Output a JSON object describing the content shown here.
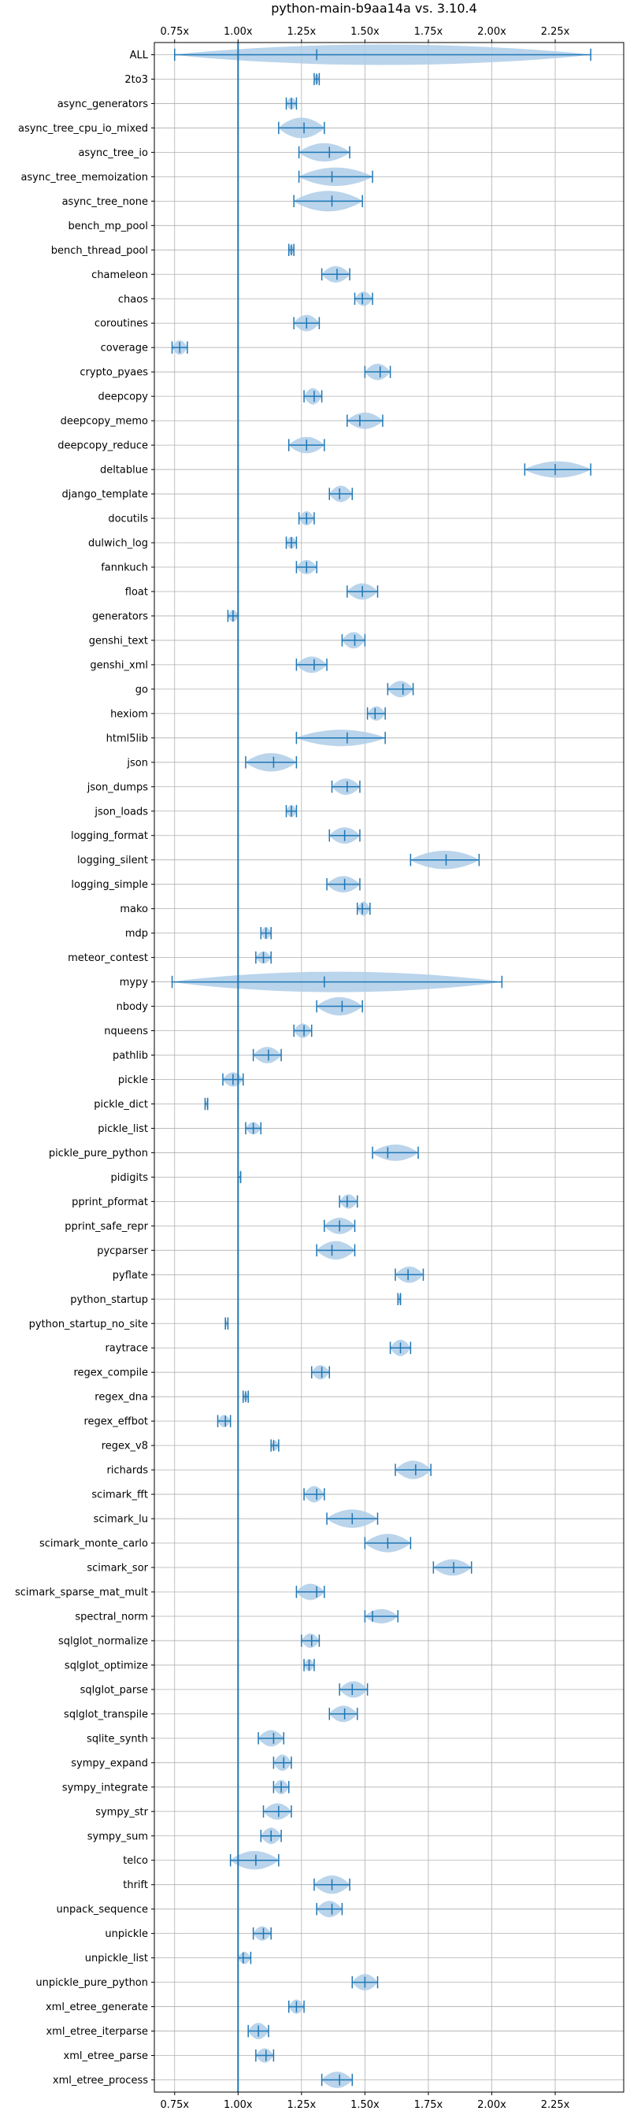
{
  "chart_data": {
    "type": "violin",
    "orientation": "horizontal",
    "title": "python-main-b9aa14a vs. 3.10.4",
    "xlabel": "",
    "ylabel": "",
    "xlim": [
      0.67,
      2.52
    ],
    "x_ticks": [
      0.75,
      1.0,
      1.25,
      1.5,
      1.75,
      2.0,
      2.25
    ],
    "x_tick_labels": [
      "0.75x",
      "1.00x",
      "1.25x",
      "1.50x",
      "1.75x",
      "2.00x",
      "2.25x"
    ],
    "reference_line": 1.0,
    "grid": true,
    "colors": {
      "violin_fill": "#aecde8",
      "whisker": "#1f77b4",
      "grid": "#b0b0b0",
      "axis": "#000000"
    },
    "benchmarks": [
      {
        "name": "ALL",
        "min": 0.75,
        "median": 1.31,
        "mean": 1.31,
        "max": 2.39,
        "width": 1.0
      },
      {
        "name": "2to3",
        "min": 1.3,
        "median": 1.31,
        "mean": 1.31,
        "max": 1.32,
        "width": 0.5
      },
      {
        "name": "async_generators",
        "min": 1.19,
        "median": 1.21,
        "mean": 1.21,
        "max": 1.23,
        "width": 0.6
      },
      {
        "name": "async_tree_cpu_io_mixed",
        "min": 1.16,
        "median": 1.26,
        "mean": 1.26,
        "max": 1.34,
        "width": 1.0
      },
      {
        "name": "async_tree_io",
        "min": 1.24,
        "median": 1.36,
        "mean": 1.36,
        "max": 1.44,
        "width": 0.9
      },
      {
        "name": "async_tree_memoization",
        "min": 1.24,
        "median": 1.37,
        "mean": 1.37,
        "max": 1.53,
        "width": 0.9
      },
      {
        "name": "async_tree_none",
        "min": 1.22,
        "median": 1.37,
        "mean": 1.37,
        "max": 1.49,
        "width": 1.0
      },
      {
        "name": "bench_mp_pool",
        "min": null,
        "median": null,
        "mean": null,
        "max": null,
        "width": 0
      },
      {
        "name": "bench_thread_pool",
        "min": 1.2,
        "median": 1.21,
        "mean": 1.21,
        "max": 1.22,
        "width": 0.5
      },
      {
        "name": "chameleon",
        "min": 1.33,
        "median": 1.39,
        "mean": 1.39,
        "max": 1.44,
        "width": 0.8
      },
      {
        "name": "chaos",
        "min": 1.46,
        "median": 1.49,
        "mean": 1.49,
        "max": 1.53,
        "width": 0.7
      },
      {
        "name": "coroutines",
        "min": 1.22,
        "median": 1.27,
        "mean": 1.27,
        "max": 1.32,
        "width": 0.8
      },
      {
        "name": "coverage",
        "min": 0.74,
        "median": 0.77,
        "mean": 0.77,
        "max": 0.8,
        "width": 0.7
      },
      {
        "name": "crypto_pyaes",
        "min": 1.5,
        "median": 1.56,
        "mean": 1.56,
        "max": 1.6,
        "width": 0.8
      },
      {
        "name": "deepcopy",
        "min": 1.26,
        "median": 1.3,
        "mean": 1.3,
        "max": 1.33,
        "width": 0.8
      },
      {
        "name": "deepcopy_memo",
        "min": 1.43,
        "median": 1.48,
        "mean": 1.48,
        "max": 1.57,
        "width": 0.8
      },
      {
        "name": "deepcopy_reduce",
        "min": 1.2,
        "median": 1.27,
        "mean": 1.27,
        "max": 1.34,
        "width": 0.8
      },
      {
        "name": "deltablue",
        "min": 2.13,
        "median": 2.25,
        "mean": 2.25,
        "max": 2.39,
        "width": 0.8
      },
      {
        "name": "django_template",
        "min": 1.36,
        "median": 1.4,
        "mean": 1.4,
        "max": 1.45,
        "width": 0.8
      },
      {
        "name": "docutils",
        "min": 1.24,
        "median": 1.27,
        "mean": 1.27,
        "max": 1.3,
        "width": 0.7
      },
      {
        "name": "dulwich_log",
        "min": 1.19,
        "median": 1.21,
        "mean": 1.21,
        "max": 1.23,
        "width": 0.6
      },
      {
        "name": "fannkuch",
        "min": 1.23,
        "median": 1.27,
        "mean": 1.27,
        "max": 1.31,
        "width": 0.7
      },
      {
        "name": "float",
        "min": 1.43,
        "median": 1.49,
        "mean": 1.49,
        "max": 1.55,
        "width": 0.8
      },
      {
        "name": "generators",
        "min": 0.96,
        "median": 0.98,
        "mean": 0.98,
        "max": 1.0,
        "width": 0.6
      },
      {
        "name": "genshi_text",
        "min": 1.41,
        "median": 1.46,
        "mean": 1.46,
        "max": 1.5,
        "width": 0.8
      },
      {
        "name": "genshi_xml",
        "min": 1.23,
        "median": 1.3,
        "mean": 1.3,
        "max": 1.35,
        "width": 0.8
      },
      {
        "name": "go",
        "min": 1.59,
        "median": 1.65,
        "mean": 1.65,
        "max": 1.69,
        "width": 0.8
      },
      {
        "name": "hexiom",
        "min": 1.51,
        "median": 1.54,
        "mean": 1.54,
        "max": 1.58,
        "width": 0.7
      },
      {
        "name": "html5lib",
        "min": 1.23,
        "median": 1.43,
        "mean": 1.43,
        "max": 1.58,
        "width": 0.8
      },
      {
        "name": "json",
        "min": 1.03,
        "median": 1.14,
        "mean": 1.14,
        "max": 1.23,
        "width": 0.9
      },
      {
        "name": "json_dumps",
        "min": 1.37,
        "median": 1.43,
        "mean": 1.43,
        "max": 1.48,
        "width": 0.8
      },
      {
        "name": "json_loads",
        "min": 1.19,
        "median": 1.21,
        "mean": 1.21,
        "max": 1.23,
        "width": 0.6
      },
      {
        "name": "logging_format",
        "min": 1.36,
        "median": 1.42,
        "mean": 1.42,
        "max": 1.48,
        "width": 0.8
      },
      {
        "name": "logging_silent",
        "min": 1.68,
        "median": 1.82,
        "mean": 1.82,
        "max": 1.95,
        "width": 0.9
      },
      {
        "name": "logging_simple",
        "min": 1.35,
        "median": 1.42,
        "mean": 1.42,
        "max": 1.48,
        "width": 0.8
      },
      {
        "name": "mako",
        "min": 1.47,
        "median": 1.49,
        "mean": 1.49,
        "max": 1.52,
        "width": 0.7
      },
      {
        "name": "mdp",
        "min": 1.09,
        "median": 1.11,
        "mean": 1.11,
        "max": 1.13,
        "width": 0.6
      },
      {
        "name": "meteor_contest",
        "min": 1.07,
        "median": 1.1,
        "mean": 1.1,
        "max": 1.13,
        "width": 0.6
      },
      {
        "name": "mypy",
        "min": 0.74,
        "median": 1.34,
        "mean": 1.34,
        "max": 2.04,
        "width": 1.0
      },
      {
        "name": "nbody",
        "min": 1.31,
        "median": 1.41,
        "mean": 1.41,
        "max": 1.49,
        "width": 0.9
      },
      {
        "name": "nqueens",
        "min": 1.22,
        "median": 1.26,
        "mean": 1.26,
        "max": 1.29,
        "width": 0.7
      },
      {
        "name": "pathlib",
        "min": 1.06,
        "median": 1.12,
        "mean": 1.12,
        "max": 1.17,
        "width": 0.8
      },
      {
        "name": "pickle",
        "min": 0.94,
        "median": 0.98,
        "mean": 0.98,
        "max": 1.02,
        "width": 0.7
      },
      {
        "name": "pickle_dict",
        "min": 0.87,
        "median": 0.88,
        "mean": 0.88,
        "max": 0.88,
        "width": 0.3
      },
      {
        "name": "pickle_list",
        "min": 1.03,
        "median": 1.06,
        "mean": 1.06,
        "max": 1.09,
        "width": 0.6
      },
      {
        "name": "pickle_pure_python",
        "min": 1.53,
        "median": 1.59,
        "mean": 1.59,
        "max": 1.71,
        "width": 0.8
      },
      {
        "name": "pidigits",
        "min": 1.0,
        "median": 1.01,
        "mean": 1.01,
        "max": 1.01,
        "width": 0.1
      },
      {
        "name": "pprint_pformat",
        "min": 1.4,
        "median": 1.43,
        "mean": 1.43,
        "max": 1.47,
        "width": 0.7
      },
      {
        "name": "pprint_safe_repr",
        "min": 1.34,
        "median": 1.4,
        "mean": 1.4,
        "max": 1.46,
        "width": 0.8
      },
      {
        "name": "pycparser",
        "min": 1.31,
        "median": 1.37,
        "mean": 1.37,
        "max": 1.46,
        "width": 0.9
      },
      {
        "name": "pyflate",
        "min": 1.62,
        "median": 1.67,
        "mean": 1.67,
        "max": 1.73,
        "width": 0.8
      },
      {
        "name": "python_startup",
        "min": 1.63,
        "median": 1.64,
        "mean": 1.64,
        "max": 1.64,
        "width": 0.4
      },
      {
        "name": "python_startup_no_site",
        "min": 0.95,
        "median": 0.95,
        "mean": 0.95,
        "max": 0.96,
        "width": 0.3
      },
      {
        "name": "raytrace",
        "min": 1.6,
        "median": 1.64,
        "mean": 1.64,
        "max": 1.68,
        "width": 0.8
      },
      {
        "name": "regex_compile",
        "min": 1.29,
        "median": 1.33,
        "mean": 1.33,
        "max": 1.36,
        "width": 0.7
      },
      {
        "name": "regex_dna",
        "min": 1.02,
        "median": 1.03,
        "mean": 1.03,
        "max": 1.04,
        "width": 0.4
      },
      {
        "name": "regex_effbot",
        "min": 0.92,
        "median": 0.95,
        "mean": 0.95,
        "max": 0.97,
        "width": 0.6
      },
      {
        "name": "regex_v8",
        "min": 1.13,
        "median": 1.14,
        "mean": 1.14,
        "max": 1.16,
        "width": 0.5
      },
      {
        "name": "richards",
        "min": 1.62,
        "median": 1.7,
        "mean": 1.7,
        "max": 1.76,
        "width": 0.9
      },
      {
        "name": "scimark_fft",
        "min": 1.26,
        "median": 1.31,
        "mean": 1.31,
        "max": 1.34,
        "width": 0.8
      },
      {
        "name": "scimark_lu",
        "min": 1.35,
        "median": 1.45,
        "mean": 1.45,
        "max": 1.55,
        "width": 0.9
      },
      {
        "name": "scimark_monte_carlo",
        "min": 1.5,
        "median": 1.59,
        "mean": 1.59,
        "max": 1.68,
        "width": 0.9
      },
      {
        "name": "scimark_sor",
        "min": 1.77,
        "median": 1.85,
        "mean": 1.85,
        "max": 1.92,
        "width": 0.8
      },
      {
        "name": "scimark_sparse_mat_mult",
        "min": 1.23,
        "median": 1.31,
        "mean": 1.31,
        "max": 1.34,
        "width": 0.8
      },
      {
        "name": "spectral_norm",
        "min": 1.5,
        "median": 1.53,
        "mean": 1.53,
        "max": 1.63,
        "width": 0.7
      },
      {
        "name": "sqlglot_normalize",
        "min": 1.25,
        "median": 1.29,
        "mean": 1.29,
        "max": 1.32,
        "width": 0.7
      },
      {
        "name": "sqlglot_optimize",
        "min": 1.26,
        "median": 1.28,
        "mean": 1.28,
        "max": 1.3,
        "width": 0.6
      },
      {
        "name": "sqlglot_parse",
        "min": 1.4,
        "median": 1.45,
        "mean": 1.45,
        "max": 1.51,
        "width": 0.8
      },
      {
        "name": "sqlglot_transpile",
        "min": 1.36,
        "median": 1.42,
        "mean": 1.42,
        "max": 1.47,
        "width": 0.8
      },
      {
        "name": "sqlite_synth",
        "min": 1.08,
        "median": 1.14,
        "mean": 1.14,
        "max": 1.18,
        "width": 0.8
      },
      {
        "name": "sympy_expand",
        "min": 1.14,
        "median": 1.18,
        "mean": 1.18,
        "max": 1.21,
        "width": 0.8
      },
      {
        "name": "sympy_integrate",
        "min": 1.14,
        "median": 1.17,
        "mean": 1.17,
        "max": 1.2,
        "width": 0.7
      },
      {
        "name": "sympy_str",
        "min": 1.1,
        "median": 1.16,
        "mean": 1.16,
        "max": 1.21,
        "width": 0.8
      },
      {
        "name": "sympy_sum",
        "min": 1.09,
        "median": 1.13,
        "mean": 1.13,
        "max": 1.17,
        "width": 0.8
      },
      {
        "name": "telco",
        "min": 0.97,
        "median": 1.07,
        "mean": 1.07,
        "max": 1.16,
        "width": 0.9
      },
      {
        "name": "thrift",
        "min": 1.3,
        "median": 1.37,
        "mean": 1.37,
        "max": 1.44,
        "width": 0.9
      },
      {
        "name": "unpack_sequence",
        "min": 1.31,
        "median": 1.37,
        "mean": 1.37,
        "max": 1.41,
        "width": 0.8
      },
      {
        "name": "unpickle",
        "min": 1.06,
        "median": 1.1,
        "mean": 1.1,
        "max": 1.13,
        "width": 0.7
      },
      {
        "name": "unpickle_list",
        "min": 1.0,
        "median": 1.02,
        "mean": 1.02,
        "max": 1.05,
        "width": 0.6
      },
      {
        "name": "unpickle_pure_python",
        "min": 1.45,
        "median": 1.5,
        "mean": 1.5,
        "max": 1.55,
        "width": 0.8
      },
      {
        "name": "xml_etree_generate",
        "min": 1.2,
        "median": 1.23,
        "mean": 1.23,
        "max": 1.26,
        "width": 0.7
      },
      {
        "name": "xml_etree_iterparse",
        "min": 1.04,
        "median": 1.08,
        "mean": 1.08,
        "max": 1.12,
        "width": 0.8
      },
      {
        "name": "xml_etree_parse",
        "min": 1.07,
        "median": 1.11,
        "mean": 1.11,
        "max": 1.14,
        "width": 0.7
      },
      {
        "name": "xml_etree_process",
        "min": 1.33,
        "median": 1.4,
        "mean": 1.4,
        "max": 1.45,
        "width": 0.8
      }
    ]
  }
}
